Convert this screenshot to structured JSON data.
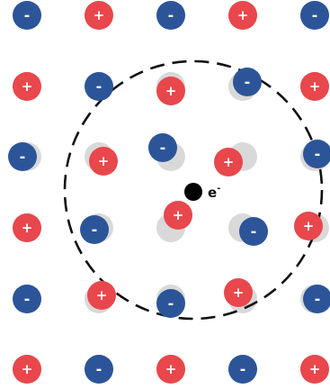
{
  "colors": {
    "positive": "#e8474c",
    "negative": "#2c5599",
    "ghost": "#d9d9d9",
    "electron": "#000000",
    "boundary": "#111111"
  },
  "symbols": {
    "positive": "+",
    "negative": "-"
  },
  "electron": {
    "label": "e",
    "superscript": "-"
  },
  "lattice": {
    "rows": [
      [
        "-",
        "+",
        "-",
        "+",
        "-"
      ],
      [
        "+",
        "-",
        "+",
        "-",
        "+"
      ],
      [
        "-",
        "+",
        "-",
        "+",
        "-"
      ],
      [
        "+",
        "-",
        "+",
        "-",
        "+"
      ],
      [
        "-",
        "+",
        "-",
        "+",
        "-"
      ],
      [
        "+",
        "-",
        "+",
        "-",
        "+"
      ]
    ],
    "displaced_inside_boundary": true
  }
}
